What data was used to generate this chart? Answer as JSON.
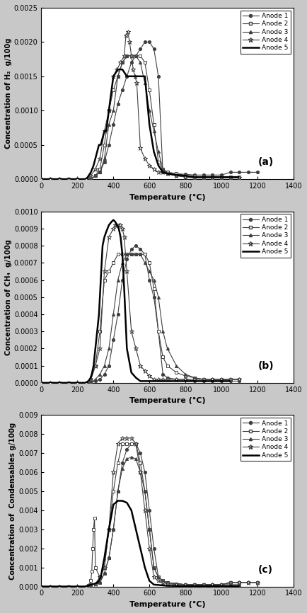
{
  "fig_width": 4.34,
  "fig_height": 8.66,
  "dpi": 100,
  "background_color": "#c8c8c8",
  "panel_bg": "#ffffff",
  "line_colors": [
    "#404040",
    "#404040",
    "#404040",
    "#404040",
    "#000000"
  ],
  "line_widths": [
    0.8,
    0.8,
    0.8,
    0.8,
    1.8
  ],
  "markers": [
    "o",
    "s",
    "^",
    "*",
    "None"
  ],
  "marker_sizes": [
    3,
    3,
    3,
    5,
    0
  ],
  "marker_fill": [
    true,
    false,
    true,
    false,
    false
  ],
  "legend_labels": [
    "Anode 1",
    "Anode 2",
    "Anode 3",
    "Anode 4",
    "Anode 5"
  ],
  "panel_labels": [
    "(a)",
    "(b)",
    "(c)"
  ],
  "xlim": [
    0,
    1400
  ],
  "xticks": [
    0,
    200,
    400,
    600,
    800,
    1000,
    1200,
    1400
  ],
  "xlabel": "Temperature (°C)",
  "a_ylabel": "Concentration of H₂  g/100g",
  "a_ylim": [
    0,
    0.0025
  ],
  "a_yticks": [
    0,
    0.0005,
    0.001,
    0.0015,
    0.002,
    0.0025
  ],
  "b_ylabel": "Concentration of CH₄  g/100g",
  "b_ylim": [
    0,
    0.001
  ],
  "b_yticks": [
    0,
    0.0001,
    0.0002,
    0.0003,
    0.0004,
    0.0005,
    0.0006,
    0.0007,
    0.0008,
    0.0009,
    0.001
  ],
  "c_ylabel": "Concentration of  Condensables g/100g",
  "c_ylim": [
    0,
    0.009
  ],
  "c_yticks": [
    0,
    0.001,
    0.002,
    0.003,
    0.004,
    0.005,
    0.006,
    0.007,
    0.008,
    0.009
  ],
  "a_data": {
    "anode1_x": [
      0,
      50,
      100,
      150,
      200,
      250,
      275,
      300,
      325,
      350,
      375,
      400,
      425,
      450,
      475,
      500,
      525,
      550,
      575,
      600,
      625,
      650,
      675,
      700,
      750,
      800,
      850,
      900,
      950,
      1000,
      1050,
      1100,
      1150,
      1200
    ],
    "anode1_y": [
      0,
      0,
      0,
      0,
      0,
      0,
      0,
      5e-05,
      0.0001,
      0.00025,
      0.0005,
      0.0008,
      0.0011,
      0.0013,
      0.0015,
      0.0017,
      0.0018,
      0.0019,
      0.002,
      0.002,
      0.0019,
      0.0015,
      0.0001,
      0.0001,
      8e-05,
      7e-05,
      6e-05,
      6e-05,
      6e-05,
      6e-05,
      0.0001,
      0.0001,
      0.0001,
      0.0001
    ],
    "anode2_x": [
      0,
      50,
      100,
      150,
      200,
      250,
      275,
      300,
      325,
      350,
      375,
      400,
      425,
      450,
      475,
      500,
      525,
      550,
      575,
      600,
      625,
      650,
      675,
      700,
      750,
      800,
      850,
      900,
      950,
      1000,
      1050,
      1100
    ],
    "anode2_y": [
      0,
      0,
      0,
      0,
      0,
      0,
      0,
      5e-05,
      0.00015,
      0.0005,
      0.001,
      0.0013,
      0.0015,
      0.0017,
      0.0018,
      0.0018,
      0.0018,
      0.0018,
      0.0017,
      0.0013,
      0.0008,
      0.00025,
      0.00015,
      0.0001,
      8e-05,
      5e-05,
      4e-05,
      3e-05,
      3e-05,
      3e-05,
      3e-05,
      3e-05
    ],
    "anode3_x": [
      0,
      50,
      100,
      150,
      200,
      250,
      275,
      300,
      325,
      350,
      375,
      400,
      425,
      450,
      475,
      500,
      525,
      550,
      575,
      600,
      625,
      650,
      675,
      700,
      750,
      800,
      850,
      900,
      950,
      1000,
      1050,
      1100
    ],
    "anode3_y": [
      0,
      0,
      0,
      0,
      0,
      0,
      0,
      5e-05,
      0.0001,
      0.0003,
      0.0008,
      0.001,
      0.0015,
      0.0017,
      0.0018,
      0.0018,
      0.0018,
      0.0017,
      0.0014,
      0.001,
      0.0007,
      0.0004,
      0.00015,
      8e-05,
      5e-05,
      3e-05,
      2e-05,
      2e-05,
      2e-05,
      2e-05,
      2e-05,
      2e-05
    ],
    "anode4_x": [
      0,
      50,
      100,
      150,
      200,
      250,
      275,
      300,
      325,
      350,
      375,
      400,
      420,
      440,
      460,
      470,
      480,
      490,
      500,
      510,
      520,
      530,
      550,
      575,
      600,
      625,
      650,
      675,
      700,
      750,
      800,
      850,
      900,
      950,
      1000,
      1050,
      1100
    ],
    "anode4_y": [
      0,
      0,
      0,
      0,
      0,
      0,
      5e-05,
      0.00015,
      0.0003,
      0.0007,
      0.001,
      0.0015,
      0.0016,
      0.0017,
      0.0018,
      0.0021,
      0.00215,
      0.002,
      0.0018,
      0.0016,
      0.0015,
      0.0014,
      0.00045,
      0.0003,
      0.0002,
      0.00015,
      0.0001,
      0.0001,
      8e-05,
      5e-05,
      3e-05,
      2e-05,
      2e-05,
      2e-05,
      2e-05,
      2e-05,
      2e-05
    ],
    "anode5_x": [
      0,
      50,
      100,
      150,
      200,
      250,
      275,
      290,
      300,
      310,
      320,
      330,
      340,
      350,
      360,
      375,
      400,
      425,
      450,
      475,
      500,
      525,
      550,
      575,
      600,
      625,
      650,
      675,
      700,
      750,
      800,
      850,
      900,
      950,
      1000,
      1050,
      1100
    ],
    "anode5_y": [
      0,
      0,
      0,
      0,
      0,
      0,
      0.0001,
      0.0002,
      0.0003,
      0.0004,
      0.0005,
      0.0005,
      0.0006,
      0.0007,
      0.0007,
      0.001,
      0.0015,
      0.0016,
      0.0016,
      0.0015,
      0.0015,
      0.0015,
      0.0015,
      0.0015,
      0.0008,
      0.0004,
      0.0002,
      0.0001,
      8e-05,
      6e-05,
      5e-05,
      3e-05,
      3e-05,
      3e-05,
      3e-05,
      3e-05,
      3e-05
    ]
  },
  "b_data": {
    "anode1_x": [
      0,
      50,
      100,
      150,
      200,
      250,
      275,
      300,
      325,
      350,
      375,
      400,
      425,
      450,
      475,
      500,
      525,
      550,
      575,
      600,
      625,
      650,
      675,
      700,
      750,
      800,
      850,
      900,
      950,
      1000,
      1050,
      1100
    ],
    "anode1_y": [
      0,
      0,
      0,
      0,
      0,
      0,
      0,
      1e-05,
      2e-05,
      5e-05,
      0.0001,
      0.00025,
      0.0004,
      0.0006,
      0.00072,
      0.00078,
      0.0008,
      0.00078,
      0.00075,
      0.0006,
      0.0005,
      0.0003,
      5e-05,
      3e-05,
      2e-05,
      2e-05,
      1e-05,
      1e-05,
      1e-05,
      1e-05,
      1e-05,
      1e-05
    ],
    "anode2_x": [
      0,
      50,
      100,
      150,
      200,
      250,
      275,
      300,
      325,
      350,
      375,
      400,
      425,
      450,
      475,
      500,
      525,
      550,
      575,
      600,
      625,
      650,
      675,
      700,
      750,
      800,
      850,
      900,
      950,
      1000,
      1050,
      1100
    ],
    "anode2_y": [
      0,
      0,
      0,
      0,
      0,
      0,
      2e-05,
      0.0001,
      0.0003,
      0.0006,
      0.00065,
      0.0007,
      0.00075,
      0.00075,
      0.00075,
      0.00075,
      0.00075,
      0.00075,
      0.00075,
      0.0007,
      0.00055,
      0.0003,
      0.00015,
      0.0001,
      6e-05,
      4e-05,
      3e-05,
      2e-05,
      2e-05,
      2e-05,
      2e-05,
      2e-05
    ],
    "anode3_x": [
      0,
      50,
      100,
      150,
      200,
      250,
      275,
      300,
      325,
      350,
      375,
      400,
      425,
      450,
      475,
      500,
      525,
      550,
      575,
      600,
      625,
      650,
      675,
      700,
      750,
      800,
      850,
      900,
      950,
      1000,
      1050,
      1100
    ],
    "anode3_y": [
      0,
      0,
      0,
      0,
      0,
      0,
      0,
      2e-05,
      5e-05,
      0.0001,
      0.0002,
      0.0004,
      0.0006,
      0.0007,
      0.00075,
      0.00075,
      0.00075,
      0.00075,
      0.0007,
      0.00065,
      0.0006,
      0.0005,
      0.0003,
      0.0002,
      0.0001,
      5e-05,
      3e-05,
      2e-05,
      2e-05,
      2e-05,
      2e-05,
      2e-05
    ],
    "anode4_x": [
      0,
      50,
      100,
      150,
      200,
      250,
      275,
      300,
      325,
      350,
      375,
      400,
      410,
      420,
      430,
      440,
      450,
      460,
      475,
      500,
      525,
      550,
      575,
      600,
      625,
      650,
      675,
      700,
      750,
      800,
      850,
      900,
      950,
      1000,
      1050,
      1100
    ],
    "anode4_y": [
      0,
      0,
      0,
      0,
      0,
      0,
      2e-05,
      0.0001,
      0.0002,
      0.00065,
      0.00085,
      0.0009,
      0.00092,
      0.00092,
      0.00092,
      0.00092,
      0.0009,
      0.00085,
      0.00065,
      0.0003,
      0.0002,
      0.0001,
      7e-05,
      4e-05,
      2e-05,
      2e-05,
      2e-05,
      2e-05,
      2e-05,
      2e-05,
      2e-05,
      2e-05,
      2e-05,
      2e-05,
      2e-05,
      2e-05
    ],
    "anode5_x": [
      0,
      50,
      100,
      150,
      200,
      250,
      270,
      280,
      290,
      300,
      310,
      320,
      330,
      340,
      350,
      360,
      375,
      390,
      400,
      410,
      420,
      430,
      440,
      450,
      460,
      475,
      500,
      525,
      550,
      575,
      600,
      625,
      650,
      675,
      700,
      750,
      800,
      850,
      900,
      950,
      1000,
      1050
    ],
    "anode5_y": [
      0,
      0,
      0,
      0,
      0,
      0,
      2e-05,
      5e-05,
      0.0001,
      0.0002,
      0.0003,
      0.0004,
      0.0006,
      0.0008,
      0.00085,
      0.00088,
      0.00092,
      0.00094,
      0.00095,
      0.00094,
      0.00092,
      0.0009,
      0.00085,
      0.00075,
      0.00055,
      0.0002,
      6e-05,
      3e-05,
      1e-05,
      1e-05,
      1e-05,
      1e-05,
      1e-05,
      1e-05,
      1e-05,
      1e-05,
      1e-05,
      1e-05,
      1e-05,
      1e-05,
      1e-05,
      1e-05
    ]
  },
  "c_data": {
    "anode1_x": [
      0,
      50,
      100,
      150,
      200,
      250,
      275,
      300,
      325,
      350,
      375,
      400,
      425,
      450,
      475,
      500,
      525,
      550,
      575,
      600,
      625,
      650,
      675,
      700,
      750,
      800,
      850,
      900,
      950,
      1000,
      1050,
      1100,
      1150,
      1200
    ],
    "anode1_y": [
      0,
      0,
      0,
      0,
      0,
      0,
      0.0001,
      0.00015,
      0.0002,
      0.0007,
      0.0015,
      0.003,
      0.005,
      0.0065,
      0.0072,
      0.0075,
      0.0075,
      0.007,
      0.006,
      0.004,
      0.002,
      0.0005,
      0.0003,
      0.0002,
      0.00015,
      0.0001,
      0.0001,
      0.0001,
      0.0001,
      0.0001,
      0.0002,
      0.0002,
      0.0002,
      0.0002
    ],
    "anode2_x": [
      0,
      50,
      100,
      150,
      200,
      250,
      260,
      270,
      275,
      280,
      285,
      290,
      295,
      300,
      325,
      350,
      375,
      400,
      425,
      450,
      475,
      500,
      525,
      550,
      575,
      600,
      625,
      650,
      675,
      700,
      750,
      800,
      850,
      900,
      950,
      1000,
      1050,
      1100,
      1150,
      1200
    ],
    "anode2_y": [
      0,
      0,
      0,
      0,
      0,
      0,
      5e-05,
      0.0001,
      0.0003,
      0.0008,
      0.002,
      0.003,
      0.0036,
      0.001,
      0.0005,
      0.001,
      0.003,
      0.005,
      0.0065,
      0.0075,
      0.0075,
      0.0075,
      0.0075,
      0.0065,
      0.005,
      0.003,
      0.001,
      0.0005,
      0.0003,
      0.0002,
      0.00015,
      0.0001,
      0.0001,
      0.0001,
      0.0001,
      0.0001,
      0.0002,
      0.0002,
      0.0002,
      0.0002
    ],
    "anode3_x": [
      0,
      50,
      100,
      150,
      200,
      250,
      275,
      300,
      325,
      350,
      375,
      400,
      425,
      450,
      475,
      500,
      525,
      550,
      575,
      600,
      625,
      650,
      675,
      700,
      750,
      800,
      850,
      900,
      950,
      1000,
      1050,
      1100
    ],
    "anode3_y": [
      0,
      0,
      0,
      0,
      0,
      0,
      0.0001,
      0.00015,
      0.0002,
      0.0007,
      0.0015,
      0.003,
      0.005,
      0.0062,
      0.0067,
      0.0068,
      0.0067,
      0.006,
      0.005,
      0.003,
      0.001,
      0.0005,
      0.0003,
      0.0002,
      0.00015,
      0.0001,
      0.0001,
      0.0001,
      0.0001,
      0.0001,
      0.0001,
      0.0001
    ],
    "anode4_x": [
      0,
      50,
      100,
      150,
      200,
      250,
      275,
      300,
      325,
      350,
      375,
      400,
      425,
      450,
      475,
      500,
      525,
      550,
      575,
      600,
      625,
      650,
      675,
      700,
      750,
      800,
      850,
      900,
      950,
      1000,
      1050,
      1100,
      1150,
      1200
    ],
    "anode4_y": [
      0,
      0,
      0,
      0,
      0,
      0,
      0.0001,
      0.00015,
      0.0005,
      0.001,
      0.003,
      0.006,
      0.0075,
      0.0078,
      0.0078,
      0.0078,
      0.0075,
      0.006,
      0.004,
      0.002,
      0.0005,
      0.0003,
      0.0002,
      0.00015,
      0.0001,
      0.0001,
      0.0001,
      0.0001,
      0.0001,
      0.0001,
      0.0002,
      0.0002,
      0.0002,
      0.0002
    ],
    "anode5_x": [
      0,
      50,
      100,
      150,
      200,
      250,
      275,
      300,
      310,
      320,
      330,
      340,
      350,
      375,
      400,
      425,
      450,
      475,
      500,
      525,
      550,
      575,
      600,
      625,
      650,
      675,
      700,
      750,
      800,
      850,
      900,
      950,
      1000,
      1050,
      1100
    ],
    "anode5_y": [
      0,
      0,
      0,
      0,
      0,
      0,
      0.0001,
      0.00015,
      0.0002,
      0.0003,
      0.0005,
      0.001,
      0.0015,
      0.003,
      0.0043,
      0.0045,
      0.0045,
      0.0044,
      0.004,
      0.003,
      0.002,
      0.001,
      0.0003,
      0.0001,
      8e-05,
      6e-05,
      4e-05,
      3e-05,
      2e-05,
      2e-05,
      2e-05,
      2e-05,
      2e-05,
      2e-05,
      2e-05
    ]
  }
}
